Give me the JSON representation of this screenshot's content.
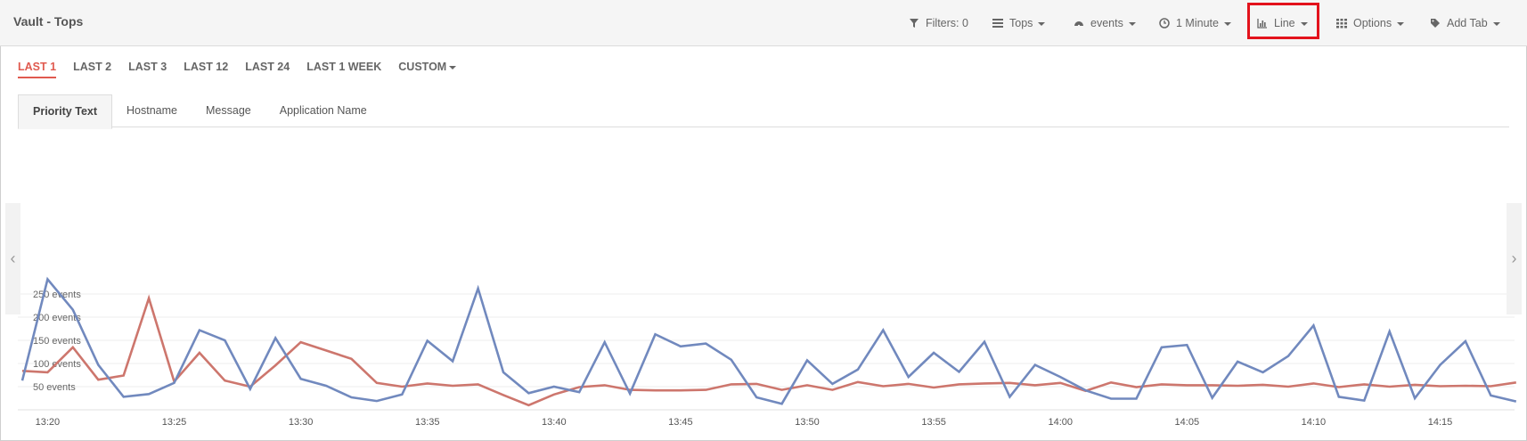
{
  "app": {
    "title": "Vault - Tops"
  },
  "toolbar": {
    "filters_label": "Filters: 0",
    "tops_label": "Tops",
    "events_label": "events",
    "interval_label": "1 Minute",
    "chart_type_label": "Line",
    "options_label": "Options",
    "add_tab_label": "Add Tab",
    "icons": [
      "filter-icon",
      "list-icon",
      "dashboard-icon",
      "clock-icon",
      "bar-chart-icon",
      "grid-icon",
      "tag-icon"
    ]
  },
  "time_ranges": {
    "items": [
      "LAST 1",
      "LAST 2",
      "LAST 3",
      "LAST 12",
      "LAST 24",
      "LAST 1 WEEK",
      "CUSTOM"
    ],
    "active": "LAST 1"
  },
  "tabs": {
    "items": [
      "Priority Text",
      "Hostname",
      "Message",
      "Application Name"
    ],
    "active": "Priority Text"
  },
  "colors": {
    "series_blue": "#7189be",
    "series_red": "#cd766d",
    "active_range": "#e05a4f",
    "highlight": "#e3121c"
  },
  "chart_data": {
    "type": "line",
    "ylim": [
      0,
      300
    ],
    "y_ticks": [
      50,
      100,
      150,
      200,
      250
    ],
    "y_tick_labels": [
      "50 events",
      "100 events",
      "150 events",
      "200 events",
      "250 events"
    ],
    "x_tick_labels": [
      "13:20",
      "13:25",
      "13:30",
      "13:35",
      "13:40",
      "13:45",
      "13:50",
      "13:55",
      "14:00",
      "14:05",
      "14:10",
      "14:15"
    ],
    "x_start": "13:19",
    "x_step_minutes": 1,
    "series": [
      {
        "values": [
          63,
          282,
          216,
          97,
          28,
          34,
          58,
          172,
          150,
          45,
          155,
          67,
          52,
          27,
          19,
          33,
          149,
          105,
          262,
          81,
          36,
          50,
          38,
          146,
          35,
          163,
          137,
          143,
          108,
          27,
          13,
          107,
          56,
          87,
          172,
          71,
          123,
          82,
          147,
          28,
          97,
          71,
          42,
          24,
          24,
          135,
          140,
          26,
          104,
          81,
          116,
          182,
          28,
          20,
          169,
          25,
          97,
          148,
          31,
          18
        ]
      },
      {
        "values": [
          84,
          81,
          135,
          65,
          74,
          241,
          61,
          123,
          63,
          50,
          96,
          146,
          128,
          110,
          58,
          50,
          57,
          52,
          55,
          32,
          10,
          33,
          49,
          53,
          43,
          42,
          42,
          43,
          55,
          56,
          43,
          53,
          43,
          60,
          51,
          56,
          48,
          55,
          57,
          58,
          53,
          58,
          41,
          59,
          49,
          55,
          53,
          53,
          52,
          54,
          50,
          57,
          49,
          55,
          50,
          54,
          51,
          52,
          51,
          59
        ]
      }
    ]
  }
}
